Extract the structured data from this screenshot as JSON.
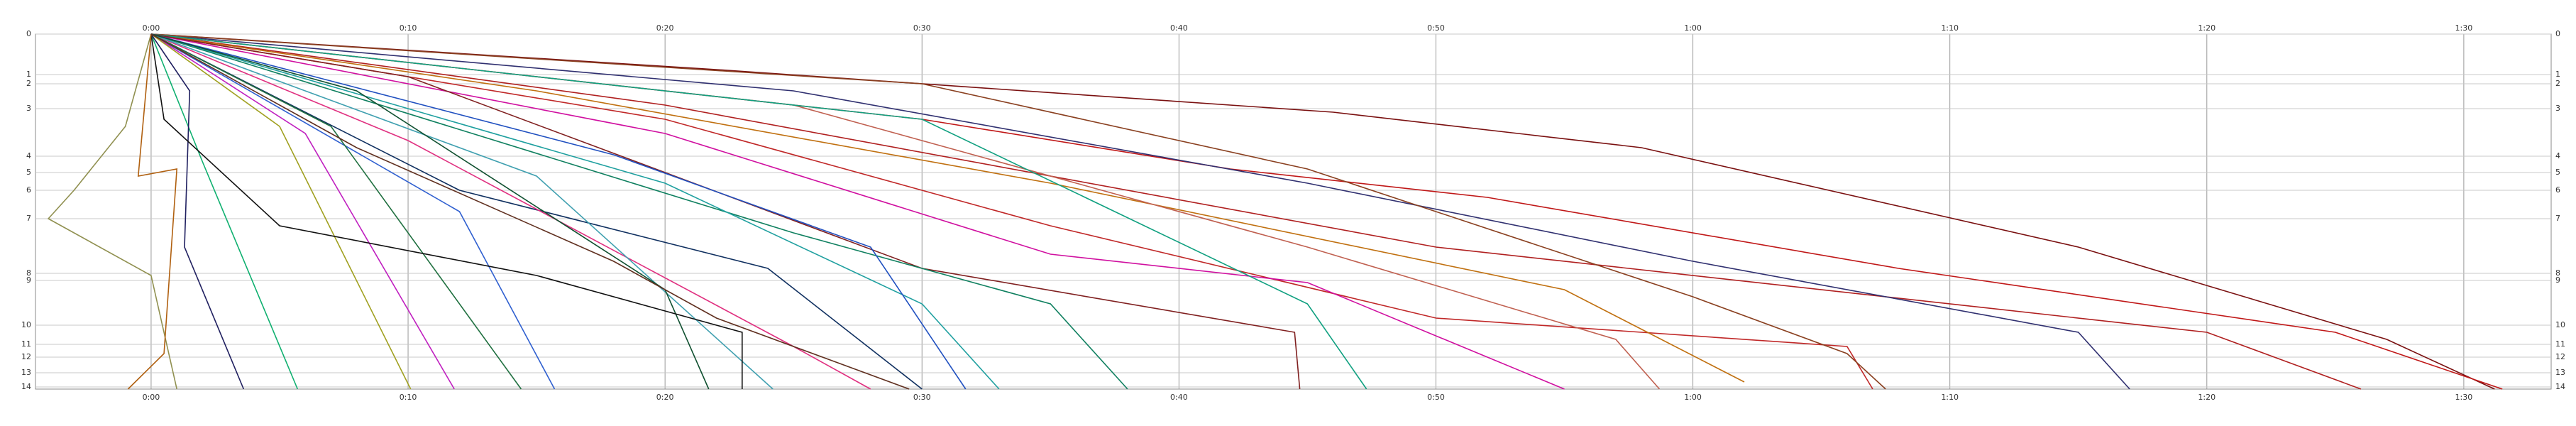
{
  "chart_data": {
    "type": "line",
    "xlim": [
      -4.5,
      93.4
    ],
    "xticks": [
      {
        "value": 0,
        "label": "0:00"
      },
      {
        "value": 10,
        "label": "0:10"
      },
      {
        "value": 20,
        "label": "0:20"
      },
      {
        "value": 30,
        "label": "0:30"
      },
      {
        "value": 40,
        "label": "0:40"
      },
      {
        "value": 50,
        "label": "0:50"
      },
      {
        "value": 60,
        "label": "1:00"
      },
      {
        "value": 70,
        "label": "1:10"
      },
      {
        "value": 80,
        "label": "1:20"
      },
      {
        "value": 90,
        "label": "1:30"
      }
    ],
    "ylim": [
      0,
      50
    ],
    "yticks": [
      0,
      {
        "value": 5.7,
        "label": "1"
      },
      {
        "value": 7,
        "label": "2"
      },
      {
        "value": 10.5,
        "label": "3"
      },
      {
        "value": 17.2,
        "label": "4"
      },
      {
        "value": 19.5,
        "label": "5"
      },
      {
        "value": 22,
        "label": "6"
      },
      {
        "value": 26,
        "label": "7"
      },
      {
        "value": 33.7,
        "label": "8"
      },
      {
        "value": 34.7,
        "label": "9"
      },
      {
        "value": 41,
        "label": "10"
      },
      {
        "value": 43.7,
        "label": "11"
      },
      {
        "value": 45.5,
        "label": "12"
      },
      {
        "value": 47.7,
        "label": "13"
      },
      {
        "value": 49.7,
        "label": "14"
      }
    ],
    "grid": true,
    "series": [
      {
        "color": "#7a1010",
        "x": [
          0,
          22,
          46,
          58,
          75,
          87,
          91.2
        ],
        "values": [
          0,
          5,
          11,
          16,
          30,
          43,
          50
        ]
      },
      {
        "color": "#c01818",
        "x": [
          0,
          30,
          42,
          52,
          68,
          85,
          91.5
        ],
        "values": [
          0,
          12,
          19,
          23,
          33,
          42,
          50
        ]
      },
      {
        "color": "#b02020",
        "x": [
          0,
          20,
          50,
          80,
          86
        ],
        "values": [
          0,
          10,
          30,
          42,
          50
        ]
      },
      {
        "color": "#303070",
        "x": [
          0,
          25,
          45,
          60,
          75,
          77
        ],
        "values": [
          0,
          8,
          21,
          32,
          42,
          50
        ]
      },
      {
        "color": "#c02828",
        "x": [
          0,
          20,
          35,
          50,
          66,
          67
        ],
        "values": [
          0,
          12,
          27,
          40,
          44,
          50
        ]
      },
      {
        "color": "#8a4020",
        "x": [
          0,
          30,
          45,
          60,
          66,
          67.5
        ],
        "values": [
          0,
          7,
          19,
          37,
          45,
          50
        ]
      },
      {
        "color": "#c07010",
        "x": [
          0,
          15,
          35,
          55,
          62
        ],
        "values": [
          0,
          8,
          21,
          36,
          49
        ]
      },
      {
        "color": "#c06050",
        "x": [
          0,
          25,
          45,
          57,
          58.7
        ],
        "values": [
          0,
          10,
          30,
          43,
          50
        ]
      },
      {
        "color": "#d010a0",
        "x": [
          0,
          20,
          35,
          45,
          55
        ],
        "values": [
          0,
          14,
          31,
          35,
          50
        ]
      },
      {
        "color": "#10a080",
        "x": [
          0,
          30,
          45,
          47.3
        ],
        "values": [
          0,
          12,
          38,
          50
        ]
      },
      {
        "color": "#802020",
        "x": [
          0,
          10,
          30,
          44.5,
          44.7
        ],
        "values": [
          0,
          6,
          33,
          42,
          50
        ]
      },
      {
        "color": "#108060",
        "x": [
          0,
          25,
          35,
          38
        ],
        "values": [
          0,
          28,
          38,
          50
        ]
      },
      {
        "color": "#20a0a0",
        "x": [
          0,
          20,
          30,
          33
        ],
        "values": [
          0,
          21,
          38,
          50
        ]
      },
      {
        "color": "#2050c0",
        "x": [
          0,
          18,
          28,
          31.7
        ],
        "values": [
          0,
          17,
          30,
          50
        ]
      },
      {
        "color": "#103060",
        "x": [
          0,
          12,
          24,
          30
        ],
        "values": [
          0,
          22,
          33,
          50
        ]
      },
      {
        "color": "#e03080",
        "x": [
          0,
          10,
          25,
          28
        ],
        "values": [
          0,
          15,
          44,
          50
        ]
      },
      {
        "color": "#40a0b0",
        "x": [
          0,
          15,
          24.2
        ],
        "values": [
          0,
          20,
          50
        ]
      },
      {
        "color": "#105030",
        "x": [
          0,
          8,
          20,
          21.7
        ],
        "values": [
          0,
          8,
          36,
          50
        ]
      },
      {
        "color": "#3060d0",
        "x": [
          0,
          12,
          15.7
        ],
        "values": [
          0,
          25,
          50
        ]
      },
      {
        "color": "#207040",
        "x": [
          0,
          7,
          14.4
        ],
        "values": [
          0,
          13,
          50
        ]
      },
      {
        "color": "#c020c0",
        "x": [
          0,
          6,
          11.8
        ],
        "values": [
          0,
          14,
          50
        ]
      },
      {
        "color": "#a0a020",
        "x": [
          0,
          5,
          10.1
        ],
        "values": [
          0,
          13,
          50
        ]
      },
      {
        "color": "#10b070",
        "x": [
          0,
          2,
          5.7
        ],
        "values": [
          0,
          18,
          50
        ]
      },
      {
        "color": "#202060",
        "x": [
          0,
          1.5,
          1.3,
          3.6
        ],
        "values": [
          0,
          8,
          30,
          50
        ]
      },
      {
        "color": "#101010",
        "x": [
          0,
          0.5,
          5,
          15,
          23,
          23
        ],
        "values": [
          0,
          12,
          27,
          34,
          42,
          50
        ]
      },
      {
        "color": "#909050",
        "x": [
          0,
          -1,
          -3,
          -4,
          0,
          1
        ],
        "values": [
          0,
          13,
          22,
          26,
          34,
          50
        ]
      },
      {
        "color": "#b06010",
        "x": [
          0,
          -0.5,
          1,
          0.5,
          -0.9
        ],
        "values": [
          0,
          20,
          19,
          45,
          50
        ]
      },
      {
        "color": "#603020",
        "x": [
          0,
          8,
          18,
          22,
          29.5
        ],
        "values": [
          0,
          16,
          32,
          40,
          50
        ]
      }
    ]
  }
}
